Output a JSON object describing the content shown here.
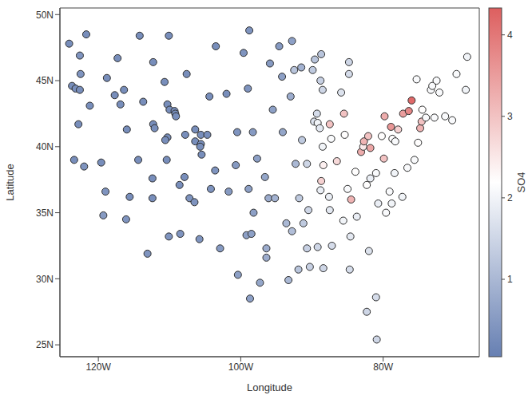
{
  "chart_data": {
    "type": "scatter",
    "x_label": "Longitude",
    "y_label": "Latitude",
    "xlim": [
      -125.4,
      -66.5
    ],
    "ylim": [
      24.1,
      50.5
    ],
    "xticks": [
      {
        "value": -120,
        "label": "120W"
      },
      {
        "value": -100,
        "label": "100W"
      },
      {
        "value": -80,
        "label": "80W"
      }
    ],
    "yticks": [
      {
        "value": 25,
        "label": "25N"
      },
      {
        "value": 30,
        "label": "30N"
      },
      {
        "value": 35,
        "label": "35N"
      },
      {
        "value": 40,
        "label": "40N"
      },
      {
        "value": 45,
        "label": "45N"
      },
      {
        "value": 50,
        "label": "50N"
      }
    ],
    "grid": false,
    "marker": "circle",
    "colorbar": {
      "label": "SO4",
      "range": [
        0.05,
        4.33
      ],
      "ticks": [
        1,
        2,
        3,
        4
      ],
      "colors": [
        "#667fb2",
        "#ffffff",
        "#dd5f5f"
      ]
    },
    "points": [
      {
        "x": -124.1,
        "y": 47.8,
        "so4": 0.3
      },
      {
        "x": -121.7,
        "y": 48.5,
        "so4": 0.3
      },
      {
        "x": -122.6,
        "y": 46.9,
        "so4": 0.4
      },
      {
        "x": -122.5,
        "y": 45.5,
        "so4": 0.4
      },
      {
        "x": -123.7,
        "y": 44.6,
        "so4": 0.3
      },
      {
        "x": -123.2,
        "y": 44.4,
        "so4": 0.3
      },
      {
        "x": -122.6,
        "y": 44.3,
        "so4": 0.3
      },
      {
        "x": -121.2,
        "y": 43.1,
        "so4": 0.3
      },
      {
        "x": -122.8,
        "y": 41.7,
        "so4": 0.3
      },
      {
        "x": -123.4,
        "y": 39.0,
        "so4": 0.3
      },
      {
        "x": -122.0,
        "y": 38.5,
        "so4": 0.4
      },
      {
        "x": -118.8,
        "y": 45.2,
        "so4": 0.3
      },
      {
        "x": -117.3,
        "y": 46.7,
        "so4": 0.3
      },
      {
        "x": -117.7,
        "y": 43.9,
        "so4": 0.3
      },
      {
        "x": -116.9,
        "y": 43.2,
        "so4": 0.3
      },
      {
        "x": -116.4,
        "y": 44.3,
        "so4": 0.3
      },
      {
        "x": -119.6,
        "y": 38.8,
        "so4": 0.3
      },
      {
        "x": -119.0,
        "y": 36.6,
        "so4": 0.4
      },
      {
        "x": -119.3,
        "y": 34.8,
        "so4": 0.5
      },
      {
        "x": -116.1,
        "y": 34.5,
        "so4": 0.4
      },
      {
        "x": -115.6,
        "y": 36.2,
        "so4": 0.3
      },
      {
        "x": -116.0,
        "y": 41.3,
        "so4": 0.3
      },
      {
        "x": -114.2,
        "y": 48.4,
        "so4": 0.3
      },
      {
        "x": -113.7,
        "y": 43.4,
        "so4": 0.3
      },
      {
        "x": -114.4,
        "y": 39.0,
        "so4": 0.3
      },
      {
        "x": -113.1,
        "y": 31.9,
        "so4": 0.4
      },
      {
        "x": -112.3,
        "y": 46.4,
        "so4": 0.3
      },
      {
        "x": -112.3,
        "y": 41.7,
        "so4": 0.3
      },
      {
        "x": -112.1,
        "y": 41.4,
        "so4": 0.3
      },
      {
        "x": -112.4,
        "y": 37.6,
        "so4": 0.3
      },
      {
        "x": -112.4,
        "y": 36.1,
        "so4": 0.3
      },
      {
        "x": -110.1,
        "y": 48.4,
        "so4": 0.3
      },
      {
        "x": -110.7,
        "y": 44.9,
        "so4": 0.3
      },
      {
        "x": -110.3,
        "y": 43.2,
        "so4": 0.3
      },
      {
        "x": -110.0,
        "y": 42.8,
        "so4": 0.3
      },
      {
        "x": -109.3,
        "y": 42.7,
        "so4": 0.3
      },
      {
        "x": -109.2,
        "y": 42.5,
        "so4": 0.3
      },
      {
        "x": -109.1,
        "y": 42.3,
        "so4": 0.3
      },
      {
        "x": -110.3,
        "y": 40.7,
        "so4": 0.3
      },
      {
        "x": -110.6,
        "y": 40.5,
        "so4": 0.3
      },
      {
        "x": -110.4,
        "y": 39.0,
        "so4": 0.3
      },
      {
        "x": -110.1,
        "y": 33.2,
        "so4": 0.4
      },
      {
        "x": -108.5,
        "y": 33.4,
        "so4": 0.4
      },
      {
        "x": -108.6,
        "y": 37.1,
        "so4": 0.3
      },
      {
        "x": -107.8,
        "y": 40.9,
        "so4": 0.3
      },
      {
        "x": -107.6,
        "y": 45.5,
        "so4": 0.3
      },
      {
        "x": -107.9,
        "y": 37.7,
        "so4": 0.3
      },
      {
        "x": -107.2,
        "y": 36.1,
        "so4": 0.4
      },
      {
        "x": -106.5,
        "y": 35.8,
        "so4": 0.4
      },
      {
        "x": -106.4,
        "y": 41.3,
        "so4": 0.3
      },
      {
        "x": -106.4,
        "y": 40.4,
        "so4": 0.3
      },
      {
        "x": -105.6,
        "y": 40.2,
        "so4": 0.3
      },
      {
        "x": -105.7,
        "y": 40.0,
        "so4": 0.3
      },
      {
        "x": -105.5,
        "y": 39.4,
        "so4": 0.3
      },
      {
        "x": -105.6,
        "y": 40.9,
        "so4": 0.3
      },
      {
        "x": -105.8,
        "y": 33.0,
        "so4": 0.4
      },
      {
        "x": -104.7,
        "y": 40.9,
        "so4": 0.3
      },
      {
        "x": -104.4,
        "y": 43.8,
        "so4": 0.3
      },
      {
        "x": -104.2,
        "y": 36.8,
        "so4": 0.4
      },
      {
        "x": -103.5,
        "y": 47.6,
        "so4": 0.3
      },
      {
        "x": -103.6,
        "y": 38.2,
        "so4": 0.4
      },
      {
        "x": -102.9,
        "y": 32.3,
        "so4": 0.5
      },
      {
        "x": -102.0,
        "y": 44.0,
        "so4": 0.3
      },
      {
        "x": -101.7,
        "y": 36.6,
        "so4": 0.5
      },
      {
        "x": -100.5,
        "y": 41.1,
        "so4": 0.4
      },
      {
        "x": -100.7,
        "y": 38.6,
        "so4": 0.5
      },
      {
        "x": -99.6,
        "y": 47.1,
        "so4": 0.4
      },
      {
        "x": -100.4,
        "y": 30.3,
        "so4": 0.6
      },
      {
        "x": -98.8,
        "y": 48.8,
        "so4": 0.4
      },
      {
        "x": -99.0,
        "y": 44.4,
        "so4": 0.4
      },
      {
        "x": -98.3,
        "y": 41.1,
        "so4": 0.5
      },
      {
        "x": -98.9,
        "y": 36.8,
        "so4": 0.6
      },
      {
        "x": -99.2,
        "y": 33.3,
        "so4": 0.6
      },
      {
        "x": -98.5,
        "y": 33.4,
        "so4": 0.6
      },
      {
        "x": -98.7,
        "y": 28.5,
        "so4": 0.6
      },
      {
        "x": -98.2,
        "y": 35.0,
        "so4": 0.6
      },
      {
        "x": -97.7,
        "y": 39.1,
        "so4": 0.6
      },
      {
        "x": -97.3,
        "y": 29.7,
        "so4": 0.7
      },
      {
        "x": -96.6,
        "y": 37.7,
        "so4": 0.7
      },
      {
        "x": -96.4,
        "y": 31.6,
        "so4": 0.8
      },
      {
        "x": -96.4,
        "y": 32.3,
        "so4": 0.8
      },
      {
        "x": -96.1,
        "y": 36.1,
        "so4": 0.8
      },
      {
        "x": -95.9,
        "y": 46.3,
        "so4": 0.5
      },
      {
        "x": -95.5,
        "y": 42.8,
        "so4": 0.6
      },
      {
        "x": -95.2,
        "y": 36.1,
        "so4": 0.9
      },
      {
        "x": -94.6,
        "y": 47.6,
        "so4": 0.5
      },
      {
        "x": -94.2,
        "y": 45.3,
        "so4": 0.6
      },
      {
        "x": -94.1,
        "y": 41.1,
        "so4": 0.7
      },
      {
        "x": -93.6,
        "y": 34.2,
        "so4": 1.0
      },
      {
        "x": -93.3,
        "y": 29.9,
        "so4": 1.0
      },
      {
        "x": -93.0,
        "y": 43.8,
        "so4": 0.8
      },
      {
        "x": -92.8,
        "y": 48.0,
        "so4": 0.6
      },
      {
        "x": -92.8,
        "y": 33.6,
        "so4": 1.1
      },
      {
        "x": -92.5,
        "y": 45.8,
        "so4": 1.2
      },
      {
        "x": -92.3,
        "y": 38.7,
        "so4": 1.0
      },
      {
        "x": -91.9,
        "y": 30.7,
        "so4": 1.2
      },
      {
        "x": -91.8,
        "y": 36.1,
        "so4": 1.3
      },
      {
        "x": -91.4,
        "y": 40.5,
        "so4": 1.3
      },
      {
        "x": -91.5,
        "y": 46.0,
        "so4": 0.9
      },
      {
        "x": -91.2,
        "y": 34.2,
        "so4": 1.3
      },
      {
        "x": -90.7,
        "y": 38.7,
        "so4": 1.5
      },
      {
        "x": -90.5,
        "y": 35.2,
        "so4": 1.5
      },
      {
        "x": -90.7,
        "y": 32.3,
        "so4": 1.4
      },
      {
        "x": -90.3,
        "y": 30.9,
        "so4": 1.4
      },
      {
        "x": -89.7,
        "y": 41.9,
        "so4": 1.7
      },
      {
        "x": -89.9,
        "y": 45.8,
        "so4": 1.3
      },
      {
        "x": -89.6,
        "y": 46.6,
        "so4": 1.2
      },
      {
        "x": -89.3,
        "y": 42.5,
        "so4": 1.6
      },
      {
        "x": -89.2,
        "y": 41.8,
        "so4": 2.0
      },
      {
        "x": -88.9,
        "y": 41.4,
        "so4": 1.8
      },
      {
        "x": -88.8,
        "y": 45.0,
        "so4": 1.4
      },
      {
        "x": -88.5,
        "y": 44.3,
        "so4": 1.5
      },
      {
        "x": -88.7,
        "y": 47.0,
        "so4": 1.2
      },
      {
        "x": -88.5,
        "y": 40.0,
        "so4": 2.0
      },
      {
        "x": -88.4,
        "y": 38.6,
        "so4": 2.4
      },
      {
        "x": -88.7,
        "y": 37.4,
        "so4": 2.8
      },
      {
        "x": -88.8,
        "y": 36.7,
        "so4": 1.9
      },
      {
        "x": -89.2,
        "y": 32.4,
        "so4": 1.5
      },
      {
        "x": -88.4,
        "y": 30.8,
        "so4": 1.5
      },
      {
        "x": -87.5,
        "y": 41.7,
        "so4": 3.0
      },
      {
        "x": -87.6,
        "y": 36.2,
        "so4": 1.9
      },
      {
        "x": -87.5,
        "y": 35.2,
        "so4": 1.8
      },
      {
        "x": -87.3,
        "y": 40.6,
        "so4": 2.1
      },
      {
        "x": -87.2,
        "y": 32.5,
        "so4": 1.6
      },
      {
        "x": -86.5,
        "y": 38.9,
        "so4": 2.7
      },
      {
        "x": -85.4,
        "y": 40.9,
        "so4": 2.2
      },
      {
        "x": -85.9,
        "y": 44.1,
        "so4": 1.7
      },
      {
        "x": -85.5,
        "y": 42.5,
        "so4": 3.0
      },
      {
        "x": -84.8,
        "y": 46.4,
        "so4": 1.5
      },
      {
        "x": -84.8,
        "y": 45.5,
        "so4": 1.6
      },
      {
        "x": -85.0,
        "y": 36.8,
        "so4": 2.1
      },
      {
        "x": -84.5,
        "y": 36.0,
        "so4": 3.2
      },
      {
        "x": -84.6,
        "y": 33.2,
        "so4": 1.8
      },
      {
        "x": -84.7,
        "y": 30.7,
        "so4": 1.6
      },
      {
        "x": -85.6,
        "y": 34.4,
        "so4": 2.0
      },
      {
        "x": -83.9,
        "y": 38.1,
        "so4": 2.2
      },
      {
        "x": -83.7,
        "y": 34.7,
        "so4": 1.9
      },
      {
        "x": -83.1,
        "y": 39.6,
        "so4": 3.3
      },
      {
        "x": -82.8,
        "y": 40.0,
        "so4": 2.5
      },
      {
        "x": -82.7,
        "y": 40.4,
        "so4": 3.2
      },
      {
        "x": -82.3,
        "y": 37.1,
        "so4": 2.2
      },
      {
        "x": -82.1,
        "y": 40.8,
        "so4": 3.0
      },
      {
        "x": -81.8,
        "y": 39.9,
        "so4": 3.4
      },
      {
        "x": -82.0,
        "y": 32.1,
        "so4": 1.7
      },
      {
        "x": -82.3,
        "y": 27.5,
        "so4": 1.5
      },
      {
        "x": -81.8,
        "y": 37.6,
        "so4": 1.9
      },
      {
        "x": -81.0,
        "y": 38.0,
        "so4": 2.1
      },
      {
        "x": -80.7,
        "y": 35.7,
        "so4": 1.9
      },
      {
        "x": -81.0,
        "y": 28.6,
        "so4": 1.6
      },
      {
        "x": -80.9,
        "y": 25.4,
        "so4": 1.5
      },
      {
        "x": -80.2,
        "y": 40.8,
        "so4": 2.2
      },
      {
        "x": -79.9,
        "y": 39.1,
        "so4": 3.0
      },
      {
        "x": -79.8,
        "y": 42.3,
        "so4": 3.3
      },
      {
        "x": -79.6,
        "y": 35.0,
        "so4": 2.1
      },
      {
        "x": -78.8,
        "y": 35.7,
        "so4": 2.0
      },
      {
        "x": -78.9,
        "y": 41.5,
        "so4": 3.6
      },
      {
        "x": -78.7,
        "y": 40.6,
        "so4": 2.2
      },
      {
        "x": -78.3,
        "y": 40.4,
        "so4": 2.1
      },
      {
        "x": -79.1,
        "y": 36.6,
        "so4": 2.1
      },
      {
        "x": -78.4,
        "y": 38.0,
        "so4": 2.0
      },
      {
        "x": -77.3,
        "y": 36.2,
        "so4": 2.0
      },
      {
        "x": -77.9,
        "y": 41.3,
        "so4": 2.8
      },
      {
        "x": -77.2,
        "y": 42.5,
        "so4": 3.5
      },
      {
        "x": -76.6,
        "y": 38.4,
        "so4": 2.1
      },
      {
        "x": -76.4,
        "y": 42.7,
        "so4": 3.8
      },
      {
        "x": -76.0,
        "y": 43.5,
        "so4": 4.2
      },
      {
        "x": -75.6,
        "y": 39.0,
        "so4": 2.1
      },
      {
        "x": -75.1,
        "y": 40.3,
        "so4": 2.2
      },
      {
        "x": -75.3,
        "y": 45.1,
        "so4": 2.1
      },
      {
        "x": -74.8,
        "y": 41.4,
        "so4": 3.2
      },
      {
        "x": -74.6,
        "y": 41.9,
        "so4": 3.0
      },
      {
        "x": -74.5,
        "y": 42.8,
        "so4": 2.2
      },
      {
        "x": -74.0,
        "y": 42.2,
        "so4": 2.1
      },
      {
        "x": -73.3,
        "y": 44.3,
        "so4": 2.1
      },
      {
        "x": -73.1,
        "y": 44.6,
        "so4": 2.1
      },
      {
        "x": -72.5,
        "y": 45.0,
        "so4": 2.1
      },
      {
        "x": -72.8,
        "y": 42.2,
        "so4": 2.1
      },
      {
        "x": -72.1,
        "y": 44.1,
        "so4": 2.1
      },
      {
        "x": -71.3,
        "y": 42.3,
        "so4": 2.1
      },
      {
        "x": -70.3,
        "y": 42.0,
        "so4": 2.1
      },
      {
        "x": -69.7,
        "y": 45.5,
        "so4": 2.1
      },
      {
        "x": -68.4,
        "y": 44.3,
        "so4": 2.0
      },
      {
        "x": -68.2,
        "y": 46.8,
        "so4": 2.0
      }
    ]
  }
}
